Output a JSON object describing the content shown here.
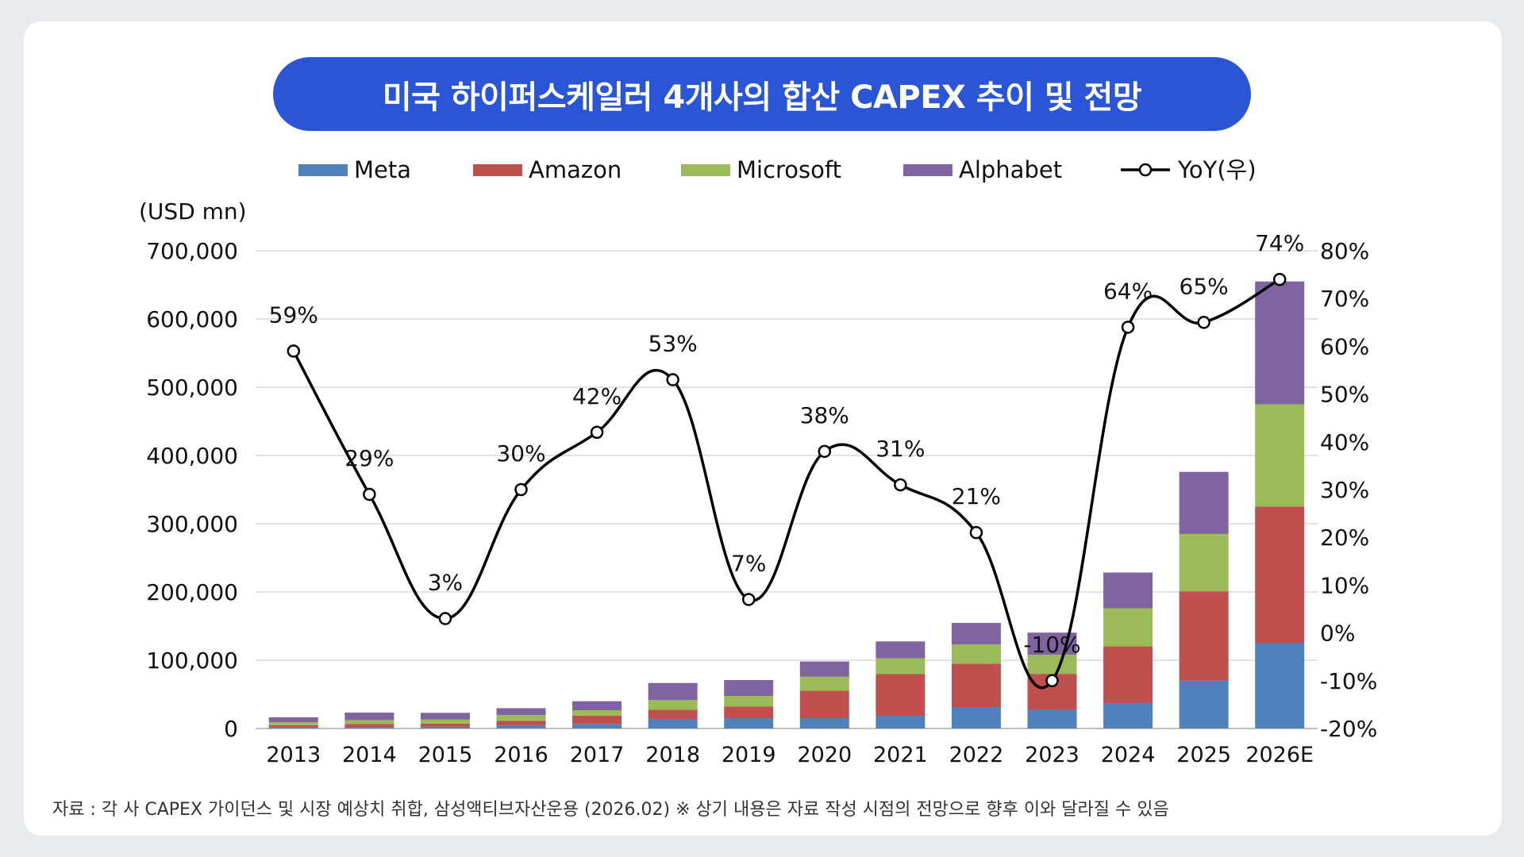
{
  "title": "미국 하이퍼스케일러 4개사의 합산 CAPEX 추이 및 전망",
  "footnote": "자료 : 각 사 CAPEX 가이던스 및 시장 예상치 취합, 삼성액티브자산운용 (2026.02) ※ 상기 내용은 자료 작성 시점의 전망으로 향후 이와 달라질 수 있음",
  "chart_data": {
    "type": "bar",
    "stacked": true,
    "title": "미국 하이퍼스케일러 4개사의 합산 CAPEX 추이 및 전망",
    "ylabel": "(USD mn)",
    "y2label": "",
    "ylim": [
      0,
      700000
    ],
    "y2lim": [
      -20,
      80
    ],
    "yticks": [
      "0",
      "100,000",
      "200,000",
      "300,000",
      "400,000",
      "500,000",
      "600,000",
      "700,000"
    ],
    "y2ticks": [
      "-20%",
      "-10%",
      "0%",
      "10%",
      "20%",
      "30%",
      "40%",
      "50%",
      "60%",
      "70%",
      "80%"
    ],
    "grid": true,
    "legend": "top",
    "categories": [
      "2013",
      "2014",
      "2015",
      "2016",
      "2017",
      "2018",
      "2019",
      "2020",
      "2021",
      "2022",
      "2023",
      "2024",
      "2025",
      "2026E"
    ],
    "series": [
      {
        "name": "Meta",
        "color": "#4f81bd",
        "values": [
          1400,
          1800,
          2500,
          4500,
          6700,
          13900,
          15100,
          15100,
          18600,
          31400,
          27300,
          37300,
          70000,
          125000
        ]
      },
      {
        "name": "Amazon",
        "color": "#c0504d",
        "values": [
          3400,
          4900,
          4600,
          6700,
          11900,
          13400,
          16900,
          40100,
          61100,
          63600,
          52700,
          83000,
          131000,
          200000
        ]
      },
      {
        "name": "Microsoft",
        "color": "#9bbb59",
        "values": [
          4300,
          5500,
          5900,
          8300,
          8100,
          14200,
          15400,
          20600,
          23200,
          28100,
          28100,
          55700,
          84000,
          150000
        ]
      },
      {
        "name": "Alphabet",
        "color": "#8064a2",
        "values": [
          7300,
          11000,
          9900,
          10200,
          13200,
          25100,
          23500,
          22300,
          24600,
          31500,
          32300,
          52500,
          91000,
          180000
        ]
      },
      {
        "name": "YoY(우)",
        "color": "#000000",
        "axis": "right",
        "type": "line",
        "values": [
          59,
          29,
          3,
          30,
          42,
          53,
          7,
          38,
          31,
          21,
          -10,
          64,
          65,
          74
        ],
        "labels": [
          "59%",
          "29%",
          "3%",
          "30%",
          "42%",
          "53%",
          "7%",
          "38%",
          "31%",
          "21%",
          "-10%",
          "64%",
          "65%",
          "74%"
        ]
      }
    ]
  }
}
